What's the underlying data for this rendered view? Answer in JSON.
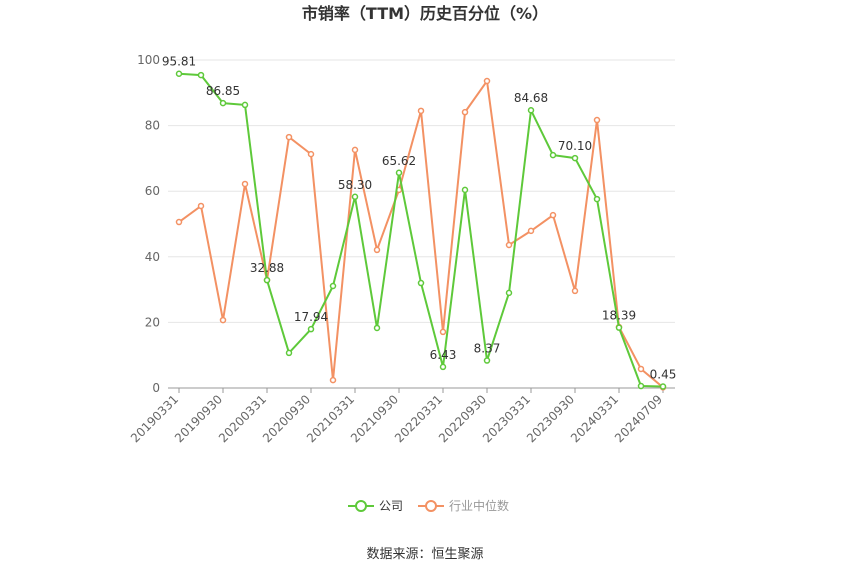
{
  "chart_data": {
    "type": "line",
    "title": "市销率（TTM）历史百分位（%）",
    "categories": [
      "20190331",
      null,
      "20190930",
      null,
      "20200331",
      null,
      "20200930",
      null,
      "20210331",
      null,
      "20210930",
      null,
      "20220331",
      null,
      "20220930",
      null,
      "20230331",
      null,
      "20230930",
      null,
      "20240331",
      null,
      "20240709"
    ],
    "series": [
      {
        "name": "公司",
        "color": "#5ec93a",
        "values": [
          95.81,
          95.4,
          86.85,
          86.3,
          32.88,
          10.7,
          17.94,
          31.1,
          58.3,
          18.3,
          65.62,
          32.0,
          6.43,
          60.4,
          8.37,
          29.0,
          84.68,
          71.0,
          70.1,
          57.6,
          18.39,
          0.6,
          0.45
        ],
        "value_labels": [
          "95.81",
          null,
          "86.85",
          null,
          "32.88",
          null,
          "17.94",
          null,
          "58.30",
          null,
          "65.62",
          null,
          "6.43",
          null,
          "8.37",
          null,
          "84.68",
          null,
          "70.10",
          null,
          "18.39",
          null,
          "0.45"
        ]
      },
      {
        "name": "行业中位数",
        "color": "#f39163",
        "values": [
          50.6,
          55.5,
          20.7,
          62.2,
          32.9,
          76.5,
          71.3,
          2.4,
          72.6,
          42.1,
          60.4,
          84.5,
          17.1,
          84.1,
          93.6,
          43.6,
          47.9,
          52.7,
          29.6,
          81.7,
          18.6,
          5.8,
          0.2
        ]
      }
    ],
    "ylim": [
      0,
      100
    ],
    "yticks": [
      0,
      20,
      40,
      60,
      80,
      100
    ],
    "grid": true,
    "source": "数据来源：恒生聚源"
  }
}
